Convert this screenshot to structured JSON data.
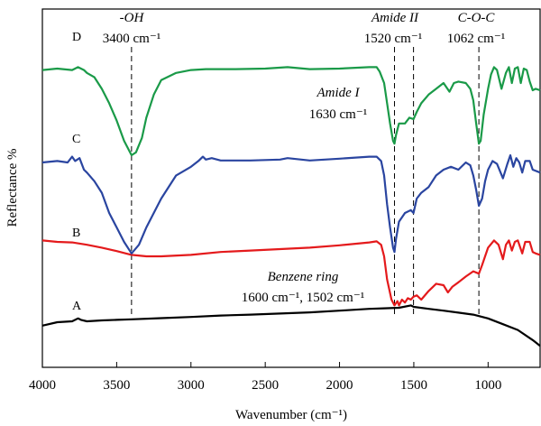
{
  "chart_data": {
    "type": "line",
    "xlabel": "Wavenumber (cm⁻¹)",
    "ylabel": "Reflectance %",
    "xlim": [
      4000,
      650
    ],
    "x_reversed": true,
    "x_ticks": [
      "4000",
      "3500",
      "3000",
      "2500",
      "2000",
      "1500",
      "1000"
    ],
    "grid": false,
    "series": [
      {
        "name": "A",
        "color": "#000000",
        "points": [
          [
            4000,
            0.06
          ],
          [
            3900,
            0.072
          ],
          [
            3800,
            0.075
          ],
          [
            3760,
            0.085
          ],
          [
            3740,
            0.08
          ],
          [
            3700,
            0.075
          ],
          [
            3600,
            0.078
          ],
          [
            3500,
            0.08
          ],
          [
            3400,
            0.082
          ],
          [
            3200,
            0.086
          ],
          [
            3000,
            0.09
          ],
          [
            2800,
            0.095
          ],
          [
            2600,
            0.098
          ],
          [
            2400,
            0.102
          ],
          [
            2200,
            0.106
          ],
          [
            2000,
            0.112
          ],
          [
            1800,
            0.118
          ],
          [
            1700,
            0.12
          ],
          [
            1600,
            0.122
          ],
          [
            1520,
            0.13
          ],
          [
            1500,
            0.125
          ],
          [
            1400,
            0.118
          ],
          [
            1300,
            0.112
          ],
          [
            1200,
            0.105
          ],
          [
            1100,
            0.098
          ],
          [
            1000,
            0.085
          ],
          [
            900,
            0.065
          ],
          [
            800,
            0.045
          ],
          [
            700,
            0.01
          ],
          [
            650,
            -0.01
          ]
        ]
      },
      {
        "name": "B",
        "color": "#e41a1c",
        "points": [
          [
            4000,
            0.355
          ],
          [
            3900,
            0.35
          ],
          [
            3800,
            0.348
          ],
          [
            3700,
            0.34
          ],
          [
            3600,
            0.33
          ],
          [
            3500,
            0.318
          ],
          [
            3400,
            0.305
          ],
          [
            3300,
            0.3
          ],
          [
            3200,
            0.3
          ],
          [
            3000,
            0.305
          ],
          [
            2800,
            0.315
          ],
          [
            2600,
            0.32
          ],
          [
            2400,
            0.325
          ],
          [
            2200,
            0.33
          ],
          [
            2000,
            0.338
          ],
          [
            1800,
            0.348
          ],
          [
            1750,
            0.352
          ],
          [
            1720,
            0.34
          ],
          [
            1700,
            0.3
          ],
          [
            1680,
            0.22
          ],
          [
            1650,
            0.15
          ],
          [
            1630,
            0.13
          ],
          [
            1610,
            0.145
          ],
          [
            1600,
            0.13
          ],
          [
            1580,
            0.15
          ],
          [
            1560,
            0.14
          ],
          [
            1540,
            0.155
          ],
          [
            1520,
            0.15
          ],
          [
            1502,
            0.16
          ],
          [
            1480,
            0.165
          ],
          [
            1450,
            0.15
          ],
          [
            1400,
            0.18
          ],
          [
            1350,
            0.205
          ],
          [
            1300,
            0.2
          ],
          [
            1270,
            0.175
          ],
          [
            1240,
            0.195
          ],
          [
            1200,
            0.21
          ],
          [
            1150,
            0.23
          ],
          [
            1100,
            0.248
          ],
          [
            1062,
            0.24
          ],
          [
            1040,
            0.27
          ],
          [
            1000,
            0.33
          ],
          [
            960,
            0.355
          ],
          [
            930,
            0.34
          ],
          [
            900,
            0.29
          ],
          [
            880,
            0.34
          ],
          [
            860,
            0.355
          ],
          [
            840,
            0.32
          ],
          [
            820,
            0.35
          ],
          [
            800,
            0.355
          ],
          [
            770,
            0.31
          ],
          [
            750,
            0.35
          ],
          [
            720,
            0.35
          ],
          [
            700,
            0.315
          ],
          [
            680,
            0.31
          ],
          [
            650,
            0.305
          ]
        ]
      },
      {
        "name": "C",
        "color": "#2a45a0",
        "points": [
          [
            4000,
            0.625
          ],
          [
            3900,
            0.63
          ],
          [
            3830,
            0.625
          ],
          [
            3800,
            0.645
          ],
          [
            3780,
            0.63
          ],
          [
            3750,
            0.64
          ],
          [
            3720,
            0.6
          ],
          [
            3700,
            0.59
          ],
          [
            3650,
            0.56
          ],
          [
            3600,
            0.52
          ],
          [
            3550,
            0.45
          ],
          [
            3500,
            0.4
          ],
          [
            3450,
            0.35
          ],
          [
            3400,
            0.31
          ],
          [
            3350,
            0.34
          ],
          [
            3300,
            0.4
          ],
          [
            3200,
            0.5
          ],
          [
            3100,
            0.58
          ],
          [
            3000,
            0.61
          ],
          [
            2950,
            0.63
          ],
          [
            2920,
            0.645
          ],
          [
            2900,
            0.635
          ],
          [
            2860,
            0.64
          ],
          [
            2800,
            0.632
          ],
          [
            2600,
            0.632
          ],
          [
            2400,
            0.635
          ],
          [
            2350,
            0.64
          ],
          [
            2200,
            0.632
          ],
          [
            2000,
            0.638
          ],
          [
            1800,
            0.645
          ],
          [
            1750,
            0.645
          ],
          [
            1720,
            0.63
          ],
          [
            1700,
            0.58
          ],
          [
            1680,
            0.48
          ],
          [
            1660,
            0.4
          ],
          [
            1640,
            0.33
          ],
          [
            1630,
            0.315
          ],
          [
            1620,
            0.36
          ],
          [
            1600,
            0.42
          ],
          [
            1560,
            0.45
          ],
          [
            1520,
            0.46
          ],
          [
            1502,
            0.45
          ],
          [
            1480,
            0.5
          ],
          [
            1450,
            0.52
          ],
          [
            1400,
            0.54
          ],
          [
            1350,
            0.58
          ],
          [
            1300,
            0.6
          ],
          [
            1250,
            0.61
          ],
          [
            1200,
            0.6
          ],
          [
            1150,
            0.625
          ],
          [
            1120,
            0.615
          ],
          [
            1100,
            0.58
          ],
          [
            1080,
            0.53
          ],
          [
            1062,
            0.475
          ],
          [
            1040,
            0.5
          ],
          [
            1020,
            0.56
          ],
          [
            1000,
            0.6
          ],
          [
            970,
            0.63
          ],
          [
            940,
            0.62
          ],
          [
            900,
            0.57
          ],
          [
            870,
            0.62
          ],
          [
            850,
            0.65
          ],
          [
            830,
            0.61
          ],
          [
            810,
            0.64
          ],
          [
            790,
            0.625
          ],
          [
            770,
            0.59
          ],
          [
            750,
            0.63
          ],
          [
            720,
            0.63
          ],
          [
            700,
            0.6
          ],
          [
            650,
            0.59
          ]
        ]
      },
      {
        "name": "D",
        "color": "#1a9a48",
        "points": [
          [
            4000,
            0.945
          ],
          [
            3900,
            0.95
          ],
          [
            3800,
            0.945
          ],
          [
            3760,
            0.955
          ],
          [
            3720,
            0.945
          ],
          [
            3700,
            0.935
          ],
          [
            3650,
            0.92
          ],
          [
            3600,
            0.88
          ],
          [
            3550,
            0.83
          ],
          [
            3500,
            0.77
          ],
          [
            3450,
            0.7
          ],
          [
            3420,
            0.67
          ],
          [
            3400,
            0.65
          ],
          [
            3370,
            0.66
          ],
          [
            3330,
            0.71
          ],
          [
            3300,
            0.78
          ],
          [
            3250,
            0.86
          ],
          [
            3200,
            0.91
          ],
          [
            3100,
            0.935
          ],
          [
            3000,
            0.945
          ],
          [
            2900,
            0.948
          ],
          [
            2700,
            0.948
          ],
          [
            2500,
            0.95
          ],
          [
            2350,
            0.955
          ],
          [
            2200,
            0.948
          ],
          [
            2000,
            0.95
          ],
          [
            1800,
            0.955
          ],
          [
            1750,
            0.955
          ],
          [
            1730,
            0.94
          ],
          [
            1700,
            0.9
          ],
          [
            1680,
            0.83
          ],
          [
            1660,
            0.76
          ],
          [
            1640,
            0.7
          ],
          [
            1630,
            0.69
          ],
          [
            1620,
            0.72
          ],
          [
            1600,
            0.76
          ],
          [
            1560,
            0.76
          ],
          [
            1530,
            0.78
          ],
          [
            1502,
            0.775
          ],
          [
            1480,
            0.8
          ],
          [
            1450,
            0.83
          ],
          [
            1400,
            0.86
          ],
          [
            1350,
            0.88
          ],
          [
            1300,
            0.9
          ],
          [
            1260,
            0.87
          ],
          [
            1230,
            0.9
          ],
          [
            1200,
            0.905
          ],
          [
            1150,
            0.9
          ],
          [
            1120,
            0.88
          ],
          [
            1100,
            0.84
          ],
          [
            1080,
            0.76
          ],
          [
            1062,
            0.69
          ],
          [
            1050,
            0.7
          ],
          [
            1030,
            0.79
          ],
          [
            1000,
            0.88
          ],
          [
            980,
            0.93
          ],
          [
            960,
            0.955
          ],
          [
            940,
            0.945
          ],
          [
            910,
            0.88
          ],
          [
            880,
            0.935
          ],
          [
            860,
            0.955
          ],
          [
            840,
            0.9
          ],
          [
            820,
            0.95
          ],
          [
            800,
            0.955
          ],
          [
            780,
            0.9
          ],
          [
            760,
            0.95
          ],
          [
            740,
            0.945
          ],
          [
            720,
            0.905
          ],
          [
            700,
            0.875
          ],
          [
            680,
            0.88
          ],
          [
            650,
            0.875
          ]
        ]
      }
    ],
    "vlines": [
      3400,
      1630,
      1502,
      1062
    ],
    "annotations": {
      "oh_title": "-OH",
      "oh_value": "3400 cm⁻¹",
      "amide2_title": "Amide II",
      "amide2_value": "1520 cm⁻¹",
      "coc_title": "C-O-C",
      "coc_value": "1062 cm⁻¹",
      "amide1_title": "Amide I",
      "amide1_value": "1630 cm⁻¹",
      "benzene_title": "Benzene ring",
      "benzene_value": "1600 cm⁻¹, 1502 cm⁻¹"
    }
  }
}
